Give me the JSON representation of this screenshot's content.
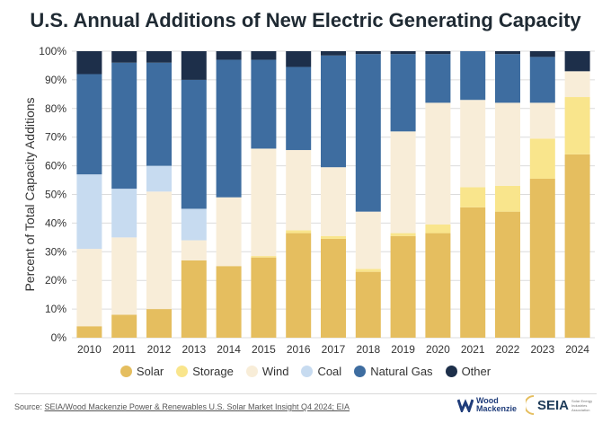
{
  "chart_data": {
    "type": "bar",
    "stacked": true,
    "title": "U.S. Annual Additions of New Electric Generating Capacity",
    "ylabel": "Percent of Total Capacity Additions",
    "xlabel": "",
    "ylim": [
      0,
      100
    ],
    "yticks": [
      "0%",
      "10%",
      "20%",
      "30%",
      "40%",
      "50%",
      "60%",
      "70%",
      "80%",
      "90%",
      "100%"
    ],
    "grid": true,
    "legend_position": "bottom",
    "categories": [
      "2010",
      "2011",
      "2012",
      "2013",
      "2014",
      "2015",
      "2016",
      "2017",
      "2018",
      "2019",
      "2020",
      "2021",
      "2022",
      "2023",
      "2024"
    ],
    "series": [
      {
        "name": "Solar",
        "color": "#e5be5f",
        "values": [
          4,
          8,
          10,
          27,
          25,
          28,
          36.5,
          34.5,
          23,
          35.5,
          36.5,
          45.5,
          44,
          55.5,
          64
        ]
      },
      {
        "name": "Storage",
        "color": "#f9e58c",
        "values": [
          0,
          0,
          0,
          0,
          0,
          0.5,
          1,
          1,
          1,
          1,
          3,
          7,
          9,
          14,
          20
        ]
      },
      {
        "name": "Wind",
        "color": "#f8edd8",
        "values": [
          27,
          27,
          41,
          7,
          24,
          37.5,
          28,
          24,
          20,
          35.5,
          42.5,
          30.5,
          29,
          12.5,
          9
        ]
      },
      {
        "name": "Coal",
        "color": "#c7dbf0",
        "values": [
          26,
          17,
          9,
          11,
          0,
          0,
          0,
          0,
          0,
          0,
          0,
          0,
          0,
          0,
          0
        ]
      },
      {
        "name": "Natural Gas",
        "color": "#3e6da0",
        "values": [
          35,
          44,
          36,
          45,
          48,
          31,
          29,
          39,
          55,
          27,
          17,
          17,
          17,
          16,
          0
        ]
      },
      {
        "name": "Other",
        "color": "#1d2f4a",
        "values": [
          8,
          4,
          4,
          10,
          3,
          3,
          5.5,
          1.5,
          1,
          1,
          1,
          0,
          1,
          2,
          7
        ]
      }
    ]
  },
  "footer": {
    "source_prefix": "Source: ",
    "source_text": "SEIA/Wood Mackenzie Power & Renewables U.S. Solar Market Insight Q4 2024; EIA"
  },
  "logos": {
    "wood_mackenzie_line1": "Wood",
    "wood_mackenzie_line2": "Mackenzie",
    "seia": "SEIA",
    "seia_sub": "Solar Energy Industries Association"
  }
}
